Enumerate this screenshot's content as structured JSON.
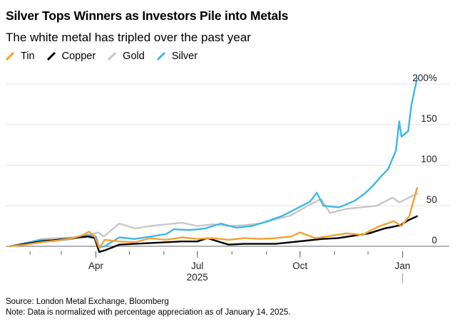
{
  "title": "Silver Tops Winners as Investors Pile into Metals",
  "subtitle": "The white metal has tripled over the past year",
  "legend": [
    {
      "name": "Tin",
      "color": "#f5a033"
    },
    {
      "name": "Copper",
      "color": "#000000"
    },
    {
      "name": "Gold",
      "color": "#c8c8c8"
    },
    {
      "name": "Silver",
      "color": "#3db8e6"
    }
  ],
  "source": "Source: London Metal Exchange, Bloomberg",
  "note": "Note: Data is normalized with percentage appreciation as of January 14, 2025.",
  "chart_data": {
    "type": "line",
    "title": "Silver Tops Winners as Investors Pile into Metals",
    "subtitle": "The white metal has tripled over the past year",
    "xlabel": "",
    "ylabel": "",
    "x_range": [
      "2025-01-14",
      "2026-01-14"
    ],
    "ylim": [
      0,
      200
    ],
    "y_ticks": [
      {
        "value": 0,
        "label": "0"
      },
      {
        "value": 50,
        "label": "50"
      },
      {
        "value": 100,
        "label": "100"
      },
      {
        "value": 150,
        "label": "150"
      },
      {
        "value": 200,
        "label": "200%"
      }
    ],
    "x_ticks": [
      {
        "date": "2025-04-01",
        "label": "Apr"
      },
      {
        "date": "2025-07-01",
        "label": "Jul"
      },
      {
        "date": "2025-10-01",
        "label": "Oct"
      },
      {
        "date": "2026-01-01",
        "label": "Jan"
      }
    ],
    "x_year_label": {
      "date": "2025-07-01",
      "label": "2025"
    },
    "grid": true,
    "series": [
      {
        "name": "Silver",
        "color": "#3db8e6",
        "points": [
          [
            "2025-01-14",
            0
          ],
          [
            "2025-01-28",
            4
          ],
          [
            "2025-02-11",
            8
          ],
          [
            "2025-02-25",
            7
          ],
          [
            "2025-03-11",
            9
          ],
          [
            "2025-03-25",
            14
          ],
          [
            "2025-04-01",
            12
          ],
          [
            "2025-04-04",
            -1
          ],
          [
            "2025-04-09",
            0
          ],
          [
            "2025-04-22",
            11
          ],
          [
            "2025-05-06",
            9
          ],
          [
            "2025-05-20",
            12
          ],
          [
            "2025-06-03",
            15
          ],
          [
            "2025-06-10",
            21
          ],
          [
            "2025-06-24",
            20
          ],
          [
            "2025-07-08",
            22
          ],
          [
            "2025-07-22",
            28
          ],
          [
            "2025-08-05",
            23
          ],
          [
            "2025-08-19",
            25
          ],
          [
            "2025-09-02",
            31
          ],
          [
            "2025-09-16",
            38
          ],
          [
            "2025-09-30",
            48
          ],
          [
            "2025-10-10",
            55
          ],
          [
            "2025-10-16",
            66
          ],
          [
            "2025-10-22",
            50
          ],
          [
            "2025-11-05",
            48
          ],
          [
            "2025-11-19",
            56
          ],
          [
            "2025-11-28",
            65
          ],
          [
            "2025-12-05",
            74
          ],
          [
            "2025-12-12",
            85
          ],
          [
            "2025-12-19",
            95
          ],
          [
            "2025-12-26",
            118
          ],
          [
            "2025-12-29",
            154
          ],
          [
            "2025-12-31",
            135
          ],
          [
            "2026-01-06",
            142
          ],
          [
            "2026-01-09",
            175
          ],
          [
            "2026-01-14",
            207
          ]
        ]
      },
      {
        "name": "Gold",
        "color": "#c8c8c8",
        "points": [
          [
            "2025-01-14",
            0
          ],
          [
            "2025-01-28",
            3
          ],
          [
            "2025-02-11",
            9
          ],
          [
            "2025-02-25",
            10
          ],
          [
            "2025-03-11",
            11
          ],
          [
            "2025-03-25",
            14
          ],
          [
            "2025-04-03",
            17
          ],
          [
            "2025-04-08",
            12
          ],
          [
            "2025-04-22",
            28
          ],
          [
            "2025-05-06",
            22
          ],
          [
            "2025-05-20",
            25
          ],
          [
            "2025-06-03",
            27
          ],
          [
            "2025-06-17",
            29
          ],
          [
            "2025-07-01",
            25
          ],
          [
            "2025-07-15",
            27
          ],
          [
            "2025-07-29",
            25
          ],
          [
            "2025-08-12",
            26
          ],
          [
            "2025-08-26",
            28
          ],
          [
            "2025-09-09",
            33
          ],
          [
            "2025-09-23",
            38
          ],
          [
            "2025-10-08",
            50
          ],
          [
            "2025-10-20",
            58
          ],
          [
            "2025-10-28",
            41
          ],
          [
            "2025-11-11",
            46
          ],
          [
            "2025-11-25",
            48
          ],
          [
            "2025-12-09",
            50
          ],
          [
            "2025-12-23",
            60
          ],
          [
            "2025-12-29",
            54
          ],
          [
            "2026-01-07",
            60
          ],
          [
            "2026-01-14",
            65
          ]
        ]
      },
      {
        "name": "Tin",
        "color": "#f5a033",
        "points": [
          [
            "2025-01-14",
            0
          ],
          [
            "2025-01-28",
            2
          ],
          [
            "2025-02-11",
            5
          ],
          [
            "2025-02-25",
            7
          ],
          [
            "2025-03-11",
            10
          ],
          [
            "2025-03-19",
            13
          ],
          [
            "2025-03-26",
            18
          ],
          [
            "2025-03-31",
            12
          ],
          [
            "2025-04-04",
            -2
          ],
          [
            "2025-04-09",
            8
          ],
          [
            "2025-04-22",
            6
          ],
          [
            "2025-05-06",
            5
          ],
          [
            "2025-05-20",
            10
          ],
          [
            "2025-06-03",
            8
          ],
          [
            "2025-06-17",
            11
          ],
          [
            "2025-07-01",
            9
          ],
          [
            "2025-07-15",
            10
          ],
          [
            "2025-07-29",
            8
          ],
          [
            "2025-08-12",
            10
          ],
          [
            "2025-08-26",
            9
          ],
          [
            "2025-09-09",
            10
          ],
          [
            "2025-09-23",
            12
          ],
          [
            "2025-10-01",
            17
          ],
          [
            "2025-10-15",
            10
          ],
          [
            "2025-10-29",
            13
          ],
          [
            "2025-11-12",
            16
          ],
          [
            "2025-11-26",
            14
          ],
          [
            "2025-12-10",
            24
          ],
          [
            "2025-12-24",
            31
          ],
          [
            "2025-12-31",
            25
          ],
          [
            "2026-01-07",
            37
          ],
          [
            "2026-01-14",
            72
          ]
        ]
      },
      {
        "name": "Copper",
        "color": "#000000",
        "points": [
          [
            "2025-01-14",
            0
          ],
          [
            "2025-01-28",
            3
          ],
          [
            "2025-02-11",
            6
          ],
          [
            "2025-02-25",
            8
          ],
          [
            "2025-03-11",
            10
          ],
          [
            "2025-03-25",
            12
          ],
          [
            "2025-03-31",
            10
          ],
          [
            "2025-04-04",
            -7
          ],
          [
            "2025-04-09",
            -5
          ],
          [
            "2025-04-22",
            2
          ],
          [
            "2025-05-06",
            3
          ],
          [
            "2025-05-20",
            4
          ],
          [
            "2025-06-03",
            5
          ],
          [
            "2025-06-17",
            6
          ],
          [
            "2025-07-01",
            6
          ],
          [
            "2025-07-10",
            10
          ],
          [
            "2025-07-29",
            2
          ],
          [
            "2025-08-12",
            3
          ],
          [
            "2025-08-26",
            3
          ],
          [
            "2025-09-09",
            3
          ],
          [
            "2025-09-23",
            5
          ],
          [
            "2025-10-07",
            7
          ],
          [
            "2025-10-21",
            9
          ],
          [
            "2025-11-04",
            10
          ],
          [
            "2025-11-18",
            13
          ],
          [
            "2025-12-02",
            16
          ],
          [
            "2025-12-16",
            22
          ],
          [
            "2025-12-30",
            26
          ],
          [
            "2026-01-06",
            32
          ],
          [
            "2026-01-14",
            37
          ]
        ]
      }
    ]
  }
}
